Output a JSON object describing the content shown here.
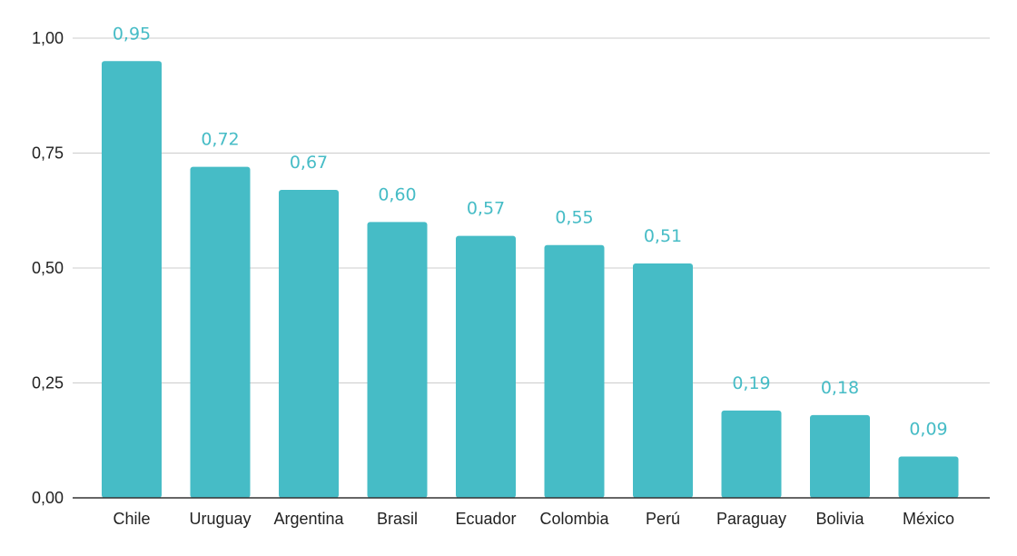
{
  "chart_data": {
    "type": "bar",
    "title": "",
    "xlabel": "",
    "ylabel": "",
    "categories": [
      "Chile",
      "Uruguay",
      "Argentina",
      "Brasil",
      "Ecuador",
      "Colombia",
      "Perú",
      "Paraguay",
      "Bolivia",
      "México"
    ],
    "values": [
      0.95,
      0.72,
      0.67,
      0.6,
      0.57,
      0.55,
      0.51,
      0.19,
      0.18,
      0.09
    ],
    "data_labels": [
      "0,95",
      "0,72",
      "0,67",
      "0,60",
      "0,57",
      "0,55",
      "0,51",
      "0,19",
      "0,18",
      "0,09"
    ],
    "ylim": [
      0,
      1
    ],
    "yticks": [
      0,
      0.25,
      0.5,
      0.75,
      1.0
    ],
    "ytick_labels": [
      "0,00",
      "0,25",
      "0,50",
      "0,75",
      "1,00"
    ],
    "grid": true,
    "legend": "none",
    "bar_color": "#46bcc6",
    "label_color": "#46bcc6"
  }
}
